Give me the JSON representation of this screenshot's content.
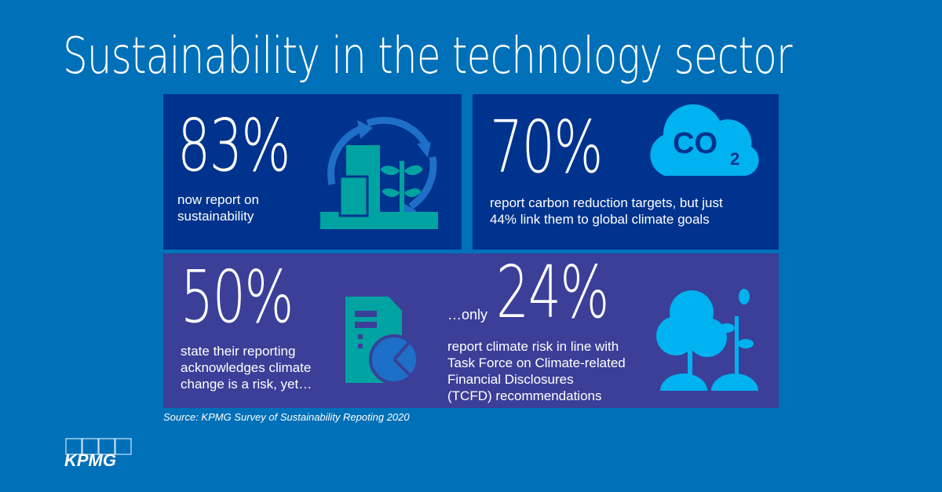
{
  "title": "Sustainability in the technology sector",
  "stats": [
    {
      "value": "83%",
      "text": [
        "now report  on",
        "sustainability"
      ],
      "icon": "building-plant-cycle-icon"
    },
    {
      "value": "70%",
      "text": [
        "report carbon reduction targets, but just",
        "44% link them to global climate goals"
      ],
      "icon": "co2-cloud-icon",
      "icon_text": "CO",
      "icon_sub": "2"
    },
    {
      "value": "50%",
      "text": [
        "state their reporting",
        "acknowledges climate",
        "change is a risk, yet…"
      ],
      "icon": "report-pie-chart-icon"
    },
    {
      "prefix": "…only",
      "value": "24%",
      "text": [
        "report climate risk in line with",
        "Task Force on Climate-related",
        "Financial Disclosures",
        "(TCFD) recommendations"
      ],
      "icon": "trees-icon"
    }
  ],
  "source": "Source: KPMG Survey of Sustainability Repoting 2020",
  "logo": "KPMG",
  "colors": {
    "background": "#0070b8",
    "panel_dark": "#00338d",
    "panel_purple": "#3b3f98",
    "teal": "#00a3a1",
    "light_blue": "#00b2ef",
    "mid_blue": "#1e6fc8"
  }
}
